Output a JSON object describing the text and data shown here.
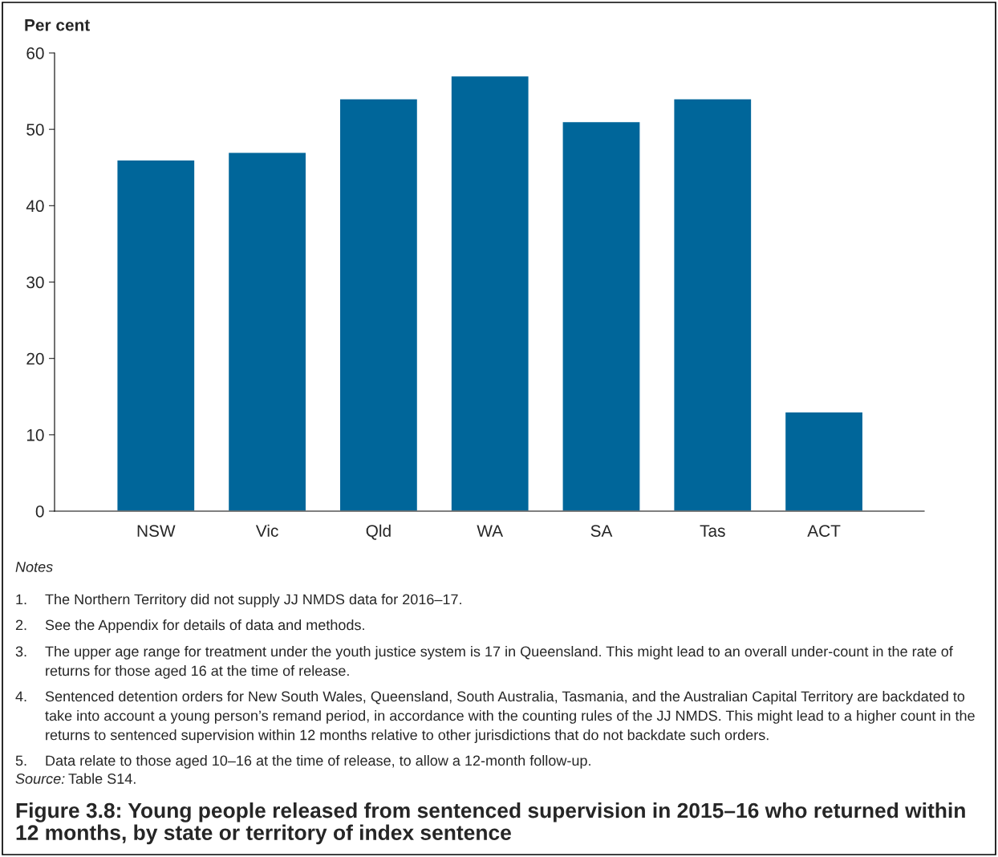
{
  "chart_data": {
    "type": "bar",
    "title": "Figure 3.8: Young people released from sentenced supervision in 2015–16 who returned within 12 months, by state or territory of index sentence",
    "ylabel": "Per cent",
    "categories": [
      "NSW",
      "Vic",
      "Qld",
      "WA",
      "SA",
      "Tas",
      "ACT"
    ],
    "values": [
      46,
      47,
      54,
      57,
      51,
      54,
      13
    ],
    "color": "#00669a",
    "ylim": [
      0,
      60
    ],
    "yticks": [
      0,
      10,
      20,
      30,
      40,
      50,
      60
    ],
    "grid": false,
    "legend": false,
    "annotations": [
      "Notes",
      "1. The Northern Territory did not supply JJ NMDS data for 2016–17.",
      "2. See the Appendix for details of data and methods.",
      "3. The upper age range for treatment under the youth justice system is 17 in Queensland. This might lead to an overall under-count in the rate of returns for those aged 16 at the time of release.",
      "4. Sentenced detention orders for New South Wales, Queensland, South Australia, Tasmania, and the Australian Capital Territory are backdated to take into account a young person’s remand period, in accordance with the counting rules of the JJ NMDS. This might lead to a higher count in the returns to sentenced supervision within 12 months relative to other jurisdictions that do not backdate such orders.",
      "5. Data relate to those aged 10–16 at the time of release, to allow a 12-month follow-up.",
      "Source: Table S14."
    ]
  }
}
